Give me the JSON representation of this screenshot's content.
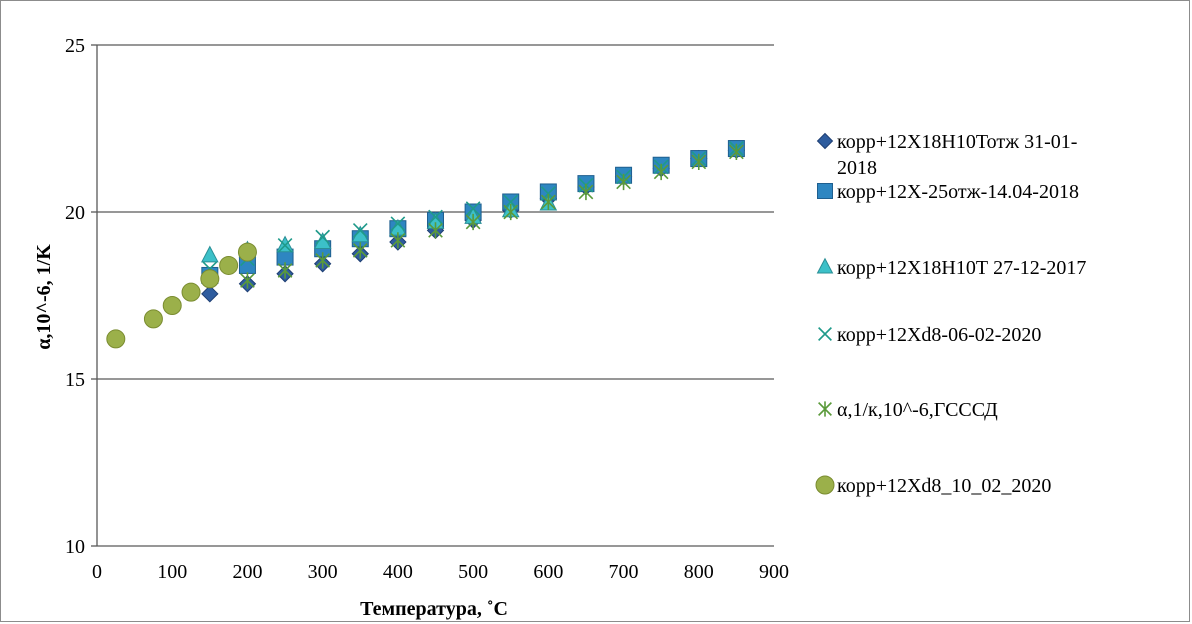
{
  "chart_data": {
    "type": "scatter",
    "title": "",
    "xlabel": "Температура, ˚С",
    "ylabel": "α,10^-6, 1/K",
    "xlim": [
      0,
      900
    ],
    "ylim": [
      10,
      25
    ],
    "x_ticks": [
      "0",
      "100",
      "200",
      "300",
      "400",
      "500",
      "600",
      "700",
      "800",
      "900"
    ],
    "y_ticks": [
      "10",
      "15",
      "20",
      "25"
    ],
    "grid": "horizontal",
    "legend_position": "right",
    "series": [
      {
        "name": "корр+12Х18Н10Тотж 31-01-2018",
        "name_lines": [
          "корр+12Х18Н10Тотж 31-01-",
          "2018"
        ],
        "marker": "diamond",
        "color": "#2e5c9e",
        "stroke": "#1f3f73",
        "x": [
          150,
          200,
          250,
          300,
          350,
          400,
          450,
          500,
          550,
          600,
          650,
          700,
          750,
          800,
          850
        ],
        "y": [
          17.55,
          17.85,
          18.15,
          18.45,
          18.75,
          19.1,
          19.45,
          19.75,
          20.05,
          20.4,
          20.75,
          21.05,
          21.3,
          21.6,
          21.85
        ]
      },
      {
        "name": "корр+12Х-25отж-14.04-2018",
        "name_lines": [
          "корр+12Х-25отж-14.04-2018"
        ],
        "marker": "square",
        "color": "#2e86c1",
        "stroke": "#1f5f8f",
        "x": [
          150,
          200,
          250,
          300,
          350,
          400,
          450,
          500,
          550,
          600,
          650,
          700,
          750,
          800,
          850
        ],
        "y": [
          18.1,
          18.4,
          18.65,
          18.9,
          19.2,
          19.5,
          19.75,
          20.0,
          20.3,
          20.6,
          20.85,
          21.1,
          21.4,
          21.6,
          21.9
        ]
      },
      {
        "name": "корр+12Х18Н10Т 27-12-2017",
        "name_lines": [
          "корр+12Х18Н10Т 27-12-2017"
        ],
        "marker": "triangle",
        "color": "#3cc0c8",
        "stroke": "#2a8f96",
        "x": [
          150,
          200,
          250,
          300,
          350,
          400,
          450,
          500,
          550,
          600
        ],
        "y": [
          18.7,
          18.85,
          19.0,
          19.1,
          19.3,
          19.5,
          19.7,
          19.85,
          20.05,
          20.25
        ]
      },
      {
        "name": "корр+12Хd8-06-02-2020",
        "name_lines": [
          "корр+12Хd8-06-02-2020"
        ],
        "marker": "x",
        "color": "#1f9a8a",
        "stroke": "#1f9a8a",
        "x": [
          150,
          200,
          250,
          300,
          350,
          400,
          450,
          500,
          550,
          600,
          650,
          700,
          750,
          800,
          850
        ],
        "y": [
          18.3,
          18.6,
          19.0,
          19.25,
          19.45,
          19.65,
          19.85,
          20.1,
          20.3,
          20.55,
          20.8,
          21.05,
          21.35,
          21.6,
          21.9
        ]
      },
      {
        "name": "α,1/к,10^-6,ГСССД",
        "name_lines": [
          "α,1/к,10^-6,ГСССД"
        ],
        "marker": "star",
        "color": "#5a9a3a",
        "stroke": "#5a9a3a",
        "x": [
          200,
          250,
          300,
          350,
          400,
          450,
          500,
          550,
          600,
          650,
          700,
          750,
          800,
          850
        ],
        "y": [
          17.95,
          18.25,
          18.55,
          18.85,
          19.15,
          19.45,
          19.7,
          20.0,
          20.3,
          20.6,
          20.9,
          21.2,
          21.5,
          21.8
        ]
      },
      {
        "name": "корр+12Хd8_10_02_2020",
        "name_lines": [
          "корр+12Хd8_10_02_2020"
        ],
        "marker": "circle",
        "color": "#9bb04a",
        "stroke": "#7a8c30",
        "x": [
          25,
          75,
          100,
          125,
          150,
          175,
          200
        ],
        "y": [
          16.2,
          16.8,
          17.2,
          17.6,
          18.0,
          18.4,
          18.8
        ]
      }
    ]
  }
}
